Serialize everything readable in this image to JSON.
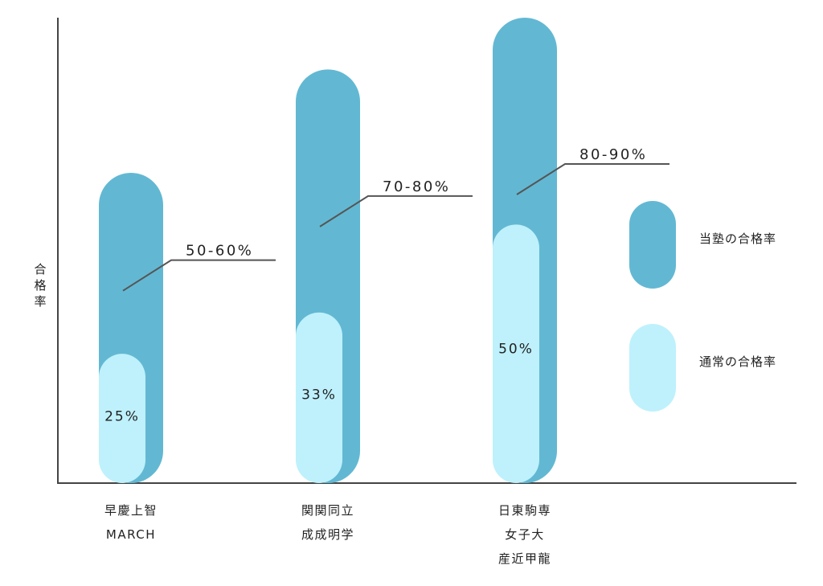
{
  "chart_data": {
    "type": "bar",
    "title": "",
    "xlabel": "",
    "ylabel": "合格率",
    "ylim": [
      0,
      90
    ],
    "grid": false,
    "legend_placement": "right",
    "categories": [
      [
        "早慶上智",
        "MARCH"
      ],
      [
        "関関同立",
        "成成明学"
      ],
      [
        "日東駒専",
        "女子大",
        "産近甲龍"
      ]
    ],
    "series": [
      {
        "name": "当塾の合格率",
        "color": "#62b8d3",
        "ranges": [
          [
            50,
            60
          ],
          [
            70,
            80
          ],
          [
            80,
            90
          ]
        ],
        "labels": [
          "50-60%",
          "70-80%",
          "80-90%"
        ]
      },
      {
        "name": "通常の合格率",
        "color": "#bef1fc",
        "values": [
          25,
          33,
          50
        ],
        "labels": [
          "25%",
          "33%",
          "50%"
        ]
      }
    ]
  }
}
